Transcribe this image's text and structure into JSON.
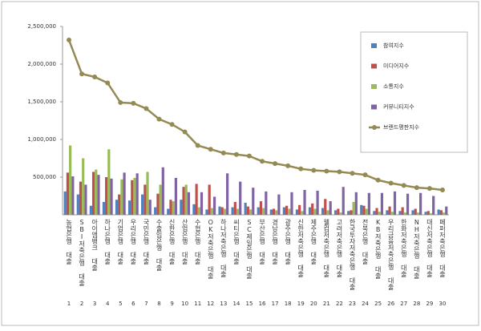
{
  "chart_data": {
    "type": "bar_line",
    "categories": [
      "농협은행 대출",
      "SBI저축은행 대출",
      "아이엠뱅크 대출",
      "하나은행 대출",
      "기업은행 대출",
      "우리은행 대출",
      "국민은행 대출",
      "수출입은행 대출",
      "신한은행 대출",
      "산업은행 대출",
      "수협은행 대출",
      "OK저축은행 대출",
      "하나저축은행 대출",
      "씨티은행 대출",
      "SC제일은행 대출",
      "부산은행 대출",
      "경남은행 대출",
      "광주은행 대출",
      "신한저축은행 대출",
      "제주은행 대출",
      "웰컴저축은행 대출",
      "고려저축은행 대출",
      "한국투자저축은행 대출",
      "전북은행 대출",
      "KB저축은행 대출",
      "우리금융저축은행 대출",
      "한화저축은행 대출",
      "NH저축은행 대출",
      "대신저축은행 대출",
      "페퍼저축은행 대출"
    ],
    "category_numbers": [
      1,
      2,
      3,
      4,
      5,
      6,
      7,
      8,
      9,
      10,
      11,
      12,
      13,
      14,
      15,
      16,
      17,
      18,
      19,
      20,
      21,
      22,
      23,
      24,
      25,
      26,
      27,
      28,
      29,
      30
    ],
    "series": [
      {
        "name": "참여지수",
        "color": "#4f81bd",
        "values": [
          310000,
          270000,
          120000,
          170000,
          200000,
          190000,
          270000,
          100000,
          80000,
          200000,
          140000,
          70000,
          110000,
          100000,
          160000,
          100000,
          70000,
          100000,
          70000,
          100000,
          90000,
          60000,
          50000,
          130000,
          50000,
          60000,
          50000,
          60000,
          40000,
          70000
        ]
      },
      {
        "name": "미디어지수",
        "color": "#c0504d",
        "values": [
          560000,
          440000,
          570000,
          500000,
          270000,
          460000,
          400000,
          280000,
          200000,
          370000,
          410000,
          400000,
          100000,
          170000,
          110000,
          180000,
          80000,
          120000,
          130000,
          150000,
          210000,
          80000,
          60000,
          120000,
          90000,
          110000,
          100000,
          80000,
          50000,
          60000
        ]
      },
      {
        "name": "소통지수",
        "color": "#9bbb59",
        "values": [
          920000,
          750000,
          600000,
          870000,
          470000,
          490000,
          570000,
          400000,
          180000,
          400000,
          100000,
          90000,
          80000,
          80000,
          70000,
          90000,
          60000,
          80000,
          50000,
          80000,
          60000,
          30000,
          170000,
          80000,
          40000,
          40000,
          30000,
          30000,
          20000,
          30000
        ]
      },
      {
        "name": "커뮤니티지수",
        "color": "#8064a2",
        "values": [
          510000,
          400000,
          530000,
          480000,
          560000,
          550000,
          200000,
          630000,
          490000,
          300000,
          300000,
          240000,
          550000,
          440000,
          360000,
          310000,
          270000,
          300000,
          330000,
          320000,
          180000,
          370000,
          300000,
          290000,
          290000,
          310000,
          280000,
          290000,
          250000,
          110000
        ]
      },
      {
        "name": "브랜드평판지수",
        "color": "#948a54",
        "type": "line",
        "values": [
          2320000,
          1870000,
          1830000,
          1750000,
          1490000,
          1480000,
          1410000,
          1270000,
          1200000,
          1100000,
          920000,
          870000,
          820000,
          800000,
          780000,
          710000,
          680000,
          650000,
          610000,
          590000,
          580000,
          570000,
          550000,
          530000,
          460000,
          420000,
          390000,
          360000,
          350000,
          330000
        ]
      }
    ],
    "ylim": [
      0,
      2500000
    ],
    "yticks": [
      {
        "value": 500000,
        "label": "500,000"
      },
      {
        "value": 1000000,
        "label": "1,000,000"
      },
      {
        "value": 1500000,
        "label": "1,500,000"
      },
      {
        "value": 2000000,
        "label": "2,000,000"
      },
      {
        "value": 2500000,
        "label": "2,500,000"
      }
    ],
    "grid": false,
    "legend": "upper right"
  }
}
